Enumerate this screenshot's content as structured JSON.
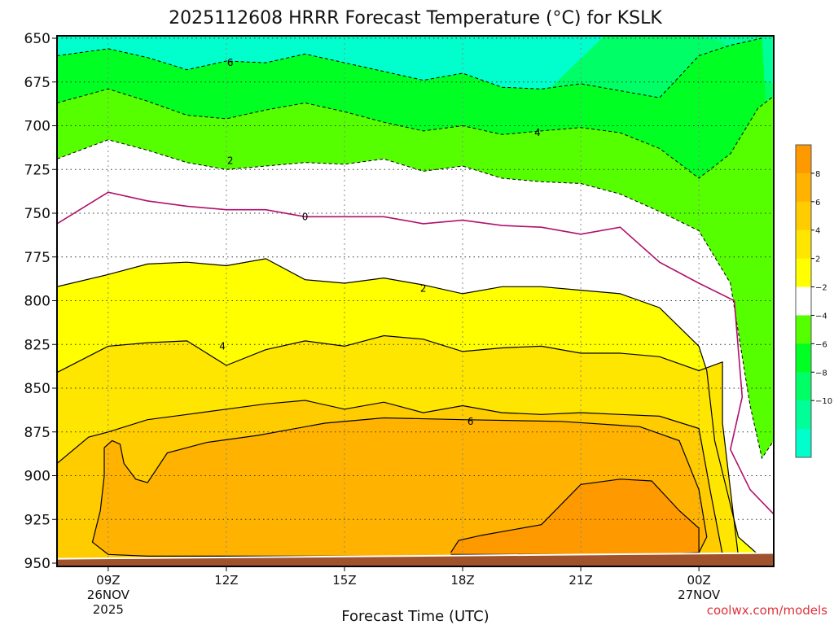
{
  "chart_data": {
    "type": "contour",
    "title": "2025112608 HRRR Forecast Temperature (°C) for KSLK",
    "xlabel": "Forecast Time (UTC)",
    "ylabel": "",
    "credit": "coolwx.com/models",
    "y_axis": {
      "scale": "pressure (reversed)",
      "range": [
        650,
        950
      ],
      "ticks": [
        "650",
        "675",
        "700",
        "725",
        "750",
        "775",
        "800",
        "825",
        "850",
        "875",
        "900",
        "925",
        "950"
      ]
    },
    "x_axis": {
      "range_hours": [
        7.7,
        25.9
      ],
      "ticks": [
        {
          "hour": 9,
          "label": "09Z",
          "date": "26NOV",
          "year": "2025"
        },
        {
          "hour": 12,
          "label": "12Z"
        },
        {
          "hour": 15,
          "label": "15Z"
        },
        {
          "hour": 18,
          "label": "18Z"
        },
        {
          "hour": 21,
          "label": "21Z"
        },
        {
          "hour": 24,
          "label": "00Z",
          "date": "27NOV"
        }
      ]
    },
    "grid": true,
    "legend_placement": "right",
    "colorbar": {
      "levels": [
        -12,
        -10,
        -8,
        -6,
        -4,
        -2,
        2,
        4,
        6,
        8,
        10
      ],
      "labels": [
        "8",
        "6",
        "4",
        "2",
        "−2",
        "−4",
        "−6",
        "−8",
        "−10"
      ],
      "label_values": [
        8,
        6,
        4,
        2,
        -2,
        -4,
        -6,
        -8,
        -10
      ],
      "colors_top_to_bottom": [
        "#ff9900",
        "#ffb300",
        "#ffcc00",
        "#ffe600",
        "#ffff00",
        "#ffffff",
        "#55ff00",
        "#00ff22",
        "#00ff66",
        "#00ff99",
        "#00ffcc"
      ]
    },
    "fill_colors": {
      "c_8": "#ff9900",
      "c_6": "#ffb300",
      "c_4": "#ffcc00",
      "c_2": "#ffe600",
      "c_0": "#ffff00",
      "c_m2": "#ffffff",
      "c_m4": "#55ff00",
      "c_m6": "#00ff22",
      "c_m8": "#00ff66",
      "c_m10": "#00ff99",
      "c_m12": "#00ffcc",
      "ground": "#a0522d"
    },
    "contours": [
      {
        "level": -6,
        "label": "6",
        "label_at": {
          "hour": 12.1,
          "p": 664
        },
        "points": [
          [
            7.7,
            660
          ],
          [
            9.0,
            656
          ],
          [
            10.0,
            661
          ],
          [
            11.0,
            668
          ],
          [
            12.0,
            663
          ],
          [
            13.0,
            664
          ],
          [
            14.0,
            659
          ],
          [
            15.0,
            664
          ],
          [
            16.0,
            669
          ],
          [
            17.0,
            674
          ],
          [
            18.0,
            670
          ],
          [
            19.0,
            678
          ],
          [
            20.0,
            679
          ],
          [
            21.0,
            676
          ],
          [
            22.0,
            680
          ],
          [
            23.0,
            684
          ],
          [
            24.0,
            660
          ],
          [
            24.8,
            654
          ],
          [
            25.6,
            650
          ]
        ]
      },
      {
        "level": -4,
        "label": "4",
        "label_at": {
          "hour": 19.9,
          "p": 704
        },
        "points": [
          [
            7.7,
            687
          ],
          [
            9.0,
            679
          ],
          [
            10.0,
            686
          ],
          [
            11.0,
            694
          ],
          [
            12.0,
            696
          ],
          [
            13.0,
            691
          ],
          [
            14.0,
            687
          ],
          [
            15.0,
            692
          ],
          [
            16.0,
            698
          ],
          [
            17.0,
            703
          ],
          [
            18.0,
            700
          ],
          [
            19.0,
            705
          ],
          [
            20.0,
            703
          ],
          [
            21.0,
            701
          ],
          [
            22.0,
            704
          ],
          [
            23.0,
            713
          ],
          [
            24.0,
            730
          ],
          [
            24.8,
            716
          ],
          [
            25.5,
            690
          ],
          [
            25.9,
            683
          ]
        ]
      },
      {
        "level": -2,
        "label": "2",
        "label_at": {
          "hour": 12.1,
          "p": 720
        },
        "points": [
          [
            7.7,
            719
          ],
          [
            9.0,
            708
          ],
          [
            10.0,
            714
          ],
          [
            11.0,
            721
          ],
          [
            12.0,
            725
          ],
          [
            13.0,
            723
          ],
          [
            14.0,
            721
          ],
          [
            15.0,
            722
          ],
          [
            16.0,
            719
          ],
          [
            17.0,
            726
          ],
          [
            18.0,
            723
          ],
          [
            19.0,
            730
          ],
          [
            20.0,
            732
          ],
          [
            21.0,
            733
          ],
          [
            22.0,
            739
          ],
          [
            23.0,
            749
          ],
          [
            24.0,
            760
          ],
          [
            24.8,
            790
          ],
          [
            25.3,
            860
          ],
          [
            25.6,
            890
          ],
          [
            25.9,
            880
          ]
        ]
      },
      {
        "level": 0,
        "label": "0",
        "label_at": {
          "hour": 14.0,
          "p": 752
        },
        "points": [
          [
            7.7,
            756
          ],
          [
            9.0,
            738
          ],
          [
            10.0,
            743
          ],
          [
            11.0,
            746
          ],
          [
            12.0,
            748
          ],
          [
            13.0,
            748
          ],
          [
            14.0,
            752
          ],
          [
            15.0,
            752
          ],
          [
            16.0,
            752
          ],
          [
            17.0,
            756
          ],
          [
            18.0,
            754
          ],
          [
            19.0,
            757
          ],
          [
            20.0,
            758
          ],
          [
            21.0,
            762
          ],
          [
            22.0,
            758
          ],
          [
            23.0,
            778
          ],
          [
            24.0,
            790
          ],
          [
            24.9,
            800
          ],
          [
            25.1,
            855
          ],
          [
            24.8,
            885
          ],
          [
            25.3,
            908
          ],
          [
            25.9,
            922
          ]
        ]
      },
      {
        "level": 2,
        "label": "2",
        "label_at": {
          "hour": 17.0,
          "p": 793
        },
        "points": [
          [
            7.7,
            792
          ],
          [
            9.0,
            785
          ],
          [
            10.0,
            779
          ],
          [
            11.0,
            778
          ],
          [
            12.0,
            780
          ],
          [
            13.0,
            776
          ],
          [
            14.0,
            788
          ],
          [
            15.0,
            790
          ],
          [
            16.0,
            787
          ],
          [
            17.0,
            791
          ],
          [
            18.0,
            796
          ],
          [
            19.0,
            792
          ],
          [
            20.0,
            792
          ],
          [
            21.0,
            794
          ],
          [
            22.0,
            796
          ],
          [
            23.0,
            804
          ],
          [
            24.0,
            826
          ],
          [
            24.2,
            840
          ],
          [
            24.4,
            880
          ],
          [
            25.0,
            935
          ],
          [
            25.6,
            947
          ]
        ]
      },
      {
        "level": 4,
        "label": "4",
        "label_at": {
          "hour": 11.9,
          "p": 826
        },
        "points": [
          [
            7.7,
            841
          ],
          [
            9.0,
            826
          ],
          [
            10.0,
            824
          ],
          [
            11.0,
            823
          ],
          [
            12.0,
            837
          ],
          [
            13.0,
            828
          ],
          [
            14.0,
            823
          ],
          [
            15.0,
            826
          ],
          [
            16.0,
            820
          ],
          [
            17.0,
            822
          ],
          [
            18.0,
            829
          ],
          [
            19.0,
            827
          ],
          [
            20.0,
            826
          ],
          [
            21.0,
            830
          ],
          [
            22.0,
            830
          ],
          [
            23.0,
            832
          ],
          [
            24.0,
            840
          ],
          [
            24.6,
            835
          ],
          [
            24.6,
            870
          ],
          [
            25.0,
            946
          ]
        ]
      },
      {
        "level": 6,
        "label": "6",
        "label_at": {
          "hour": 18.2,
          "p": 869
        },
        "points": [
          [
            7.7,
            893
          ],
          [
            8.5,
            878
          ],
          [
            9.0,
            875
          ],
          [
            10.0,
            868
          ],
          [
            11.0,
            865
          ],
          [
            12.0,
            862
          ],
          [
            13.0,
            859
          ],
          [
            14.0,
            857
          ],
          [
            15.0,
            862
          ],
          [
            16.0,
            858
          ],
          [
            17.0,
            864
          ],
          [
            18.0,
            860
          ],
          [
            19.0,
            864
          ],
          [
            20.0,
            865
          ],
          [
            21.0,
            864
          ],
          [
            22.0,
            865
          ],
          [
            23.0,
            866
          ],
          [
            24.0,
            873
          ],
          [
            24.3,
            910
          ],
          [
            24.6,
            945
          ]
        ]
      },
      {
        "level": 8,
        "label": "",
        "points": [
          [
            8.9,
            884
          ],
          [
            9.1,
            880
          ],
          [
            9.3,
            882
          ],
          [
            9.4,
            893
          ],
          [
            9.7,
            902
          ],
          [
            10.0,
            904
          ],
          [
            10.5,
            887
          ],
          [
            11.5,
            881
          ],
          [
            12.8,
            877
          ],
          [
            14.5,
            870
          ],
          [
            16.0,
            867
          ],
          [
            18.0,
            868
          ],
          [
            20.5,
            869
          ],
          [
            22.5,
            872
          ],
          [
            23.5,
            880
          ],
          [
            24.0,
            908
          ],
          [
            24.2,
            935
          ],
          [
            24.0,
            944
          ],
          [
            22.0,
            946
          ],
          [
            18.0,
            946
          ],
          [
            14.0,
            946
          ],
          [
            10.0,
            946
          ],
          [
            9.0,
            945
          ],
          [
            8.6,
            938
          ],
          [
            8.8,
            920
          ],
          [
            8.9,
            900
          ],
          [
            8.9,
            884
          ]
        ]
      },
      {
        "level": 10,
        "label": "",
        "points": [
          [
            17.7,
            944
          ],
          [
            17.9,
            937
          ],
          [
            18.5,
            934
          ],
          [
            20.0,
            928
          ],
          [
            21.0,
            905
          ],
          [
            22.0,
            902
          ],
          [
            22.8,
            903
          ],
          [
            23.5,
            920
          ],
          [
            24.0,
            930
          ],
          [
            24.0,
            945
          ],
          [
            17.7,
            945
          ]
        ]
      }
    ]
  }
}
